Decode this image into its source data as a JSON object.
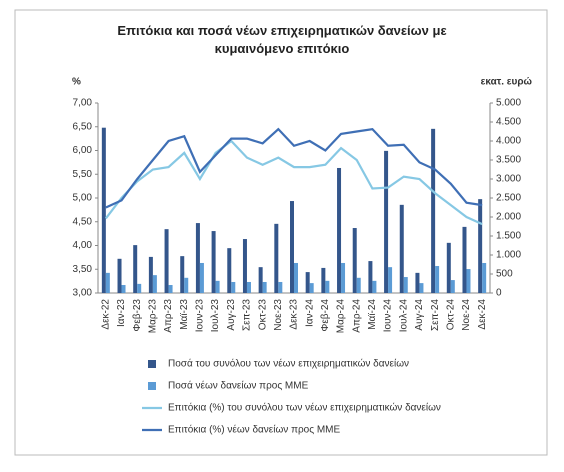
{
  "chart_data": {
    "type": "bar-line",
    "title": "Επιτόκια και ποσά νέων επιχειρηματικών δανείων με κυμαινόμενο επιτόκιο",
    "y_label": "%",
    "y2_label": "εκατ. ευρώ",
    "categories": [
      "Δεκ-22",
      "Ιαν-23",
      "Φεβ-23",
      "Μαρ-23",
      "Απρ-23",
      "Μαϊ-23",
      "Ιουν-23",
      "Ιουλ-23",
      "Αυγ-23",
      "Σεπ-23",
      "Οκτ-23",
      "Νοε-23",
      "Δεκ-23",
      "Ιαν-24",
      "Φεβ-24",
      "Μαρ-24",
      "Απρ-24",
      "Μαϊ-24",
      "Ιουν-24",
      "Ιουλ-24",
      "Αυγ-24",
      "Σεπ-24",
      "Οκτ-24",
      "Νοε-24",
      "Δεκ-24"
    ],
    "series": [
      {
        "name": "Ποσά του συνόλου των νέων επιχειρηματικών δανείων",
        "type": "bar",
        "axis": "y2",
        "color": "#34568b",
        "values": [
          4350,
          900,
          1260,
          950,
          1680,
          970,
          1840,
          1630,
          1180,
          1420,
          680,
          1820,
          2420,
          550,
          660,
          3290,
          1710,
          840,
          3740,
          2320,
          530,
          4320,
          1320,
          1740,
          2470
        ]
      },
      {
        "name": "Ποσά νέων δανείων προς ΜΜΕ",
        "type": "bar",
        "axis": "y2",
        "color": "#5b9bd5",
        "values": [
          530,
          210,
          240,
          470,
          210,
          400,
          790,
          320,
          290,
          290,
          290,
          290,
          790,
          260,
          320,
          790,
          400,
          320,
          680,
          420,
          260,
          710,
          340,
          630,
          790
        ]
      },
      {
        "name": "Επιτόκια (%) του συνόλου των νέων επιχειρηματικών δανείων",
        "type": "line",
        "color": "#86c8e4",
        "values": [
          4.57,
          5.0,
          5.35,
          5.6,
          5.65,
          5.95,
          5.4,
          5.95,
          6.2,
          5.85,
          5.7,
          5.85,
          5.65,
          5.65,
          5.7,
          6.05,
          5.8,
          5.2,
          5.22,
          5.45,
          5.4,
          5.1,
          4.85,
          4.6,
          4.45
        ]
      },
      {
        "name": "Επιτόκια (%) νέων δανείων προς ΜΜΕ",
        "type": "line",
        "color": "#3f6fb5",
        "values": [
          4.8,
          4.95,
          5.4,
          5.8,
          6.2,
          6.3,
          5.55,
          5.9,
          6.25,
          6.25,
          6.15,
          6.45,
          6.1,
          6.2,
          6.0,
          6.35,
          6.4,
          6.45,
          6.1,
          6.12,
          5.75,
          5.6,
          5.3,
          4.9,
          4.85
        ]
      }
    ],
    "ylim": [
      3,
      7
    ],
    "yticks": [
      {
        "value": 3,
        "label": "3,00"
      },
      {
        "value": 3.5,
        "label": "3,50"
      },
      {
        "value": 4,
        "label": "4,00"
      },
      {
        "value": 4.5,
        "label": "4,50"
      },
      {
        "value": 5,
        "label": "5,00"
      },
      {
        "value": 5.5,
        "label": "5,50"
      },
      {
        "value": 6,
        "label": "6,00"
      },
      {
        "value": 6.5,
        "label": "6,50"
      },
      {
        "value": 7,
        "label": "7,00"
      }
    ],
    "y2lim": [
      0,
      5000
    ],
    "y2ticks": [
      0,
      500,
      {
        "value": 1000,
        "label": "1.000"
      },
      {
        "value": 1500,
        "label": "1.500"
      },
      {
        "value": 2000,
        "label": "2.000"
      },
      {
        "value": 2500,
        "label": "2.500"
      },
      {
        "value": 3000,
        "label": "3.000"
      },
      {
        "value": 3500,
        "label": "3.500"
      },
      {
        "value": 4000,
        "label": "4.000"
      },
      {
        "value": 4500,
        "label": "4.500"
      },
      {
        "value": 5000,
        "label": "5.000"
      }
    ],
    "grid": false,
    "legend": "bottom"
  }
}
